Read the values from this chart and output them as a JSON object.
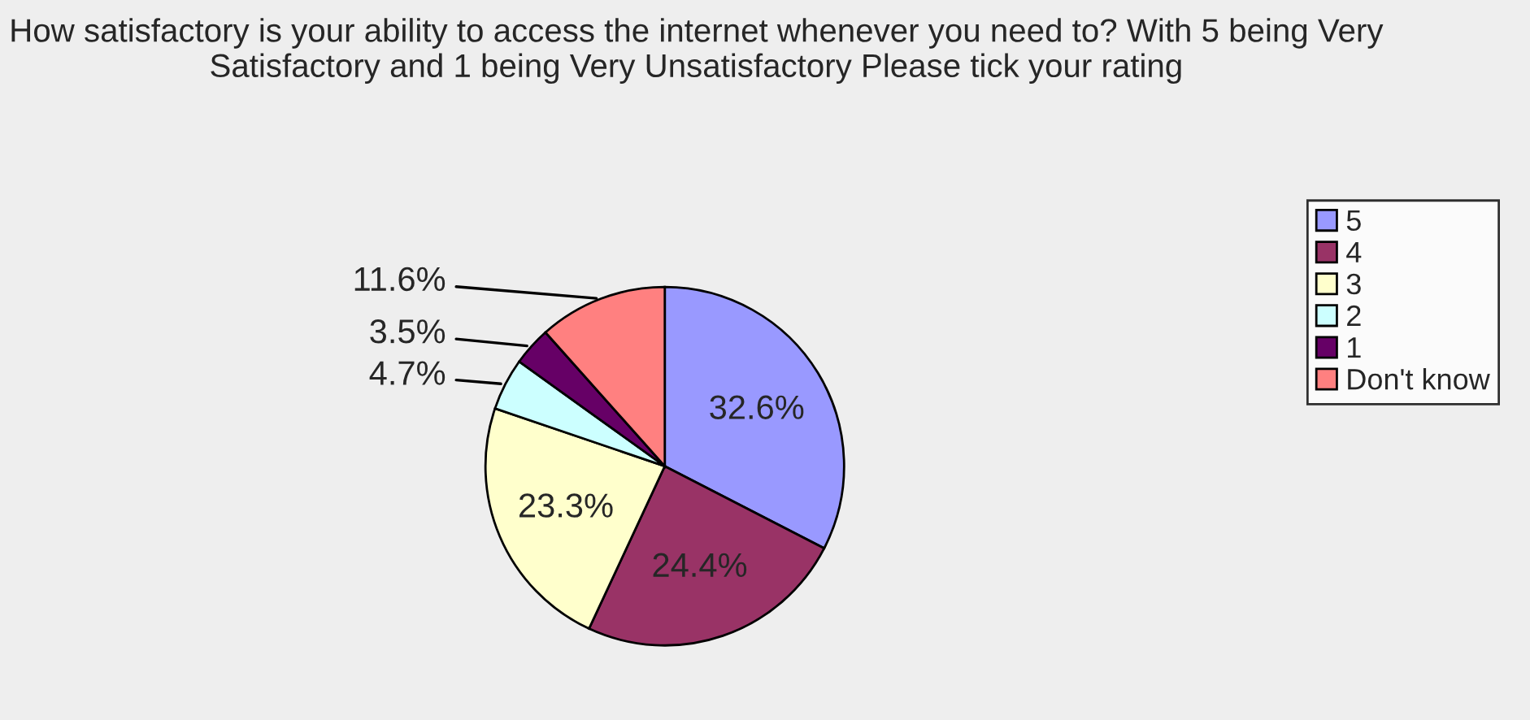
{
  "chart_data": {
    "type": "pie",
    "title": "How satisfactory is your ability to access the internet whenever you need to? With 5 being Very Satisfactory and 1 being Very Unsatisfactory Please tick your rating",
    "categories": [
      "5",
      "4",
      "3",
      "2",
      "1",
      "Don't know"
    ],
    "values": [
      32.6,
      24.4,
      23.3,
      4.7,
      3.5,
      11.6
    ],
    "value_labels": [
      "32.6%",
      "24.4%",
      "23.3%",
      "4.7%",
      "3.5%",
      "11.6%"
    ],
    "colors": [
      "#9999ff",
      "#993366",
      "#ffffcc",
      "#ccffff",
      "#660066",
      "#ff8080"
    ],
    "legend": "right"
  }
}
